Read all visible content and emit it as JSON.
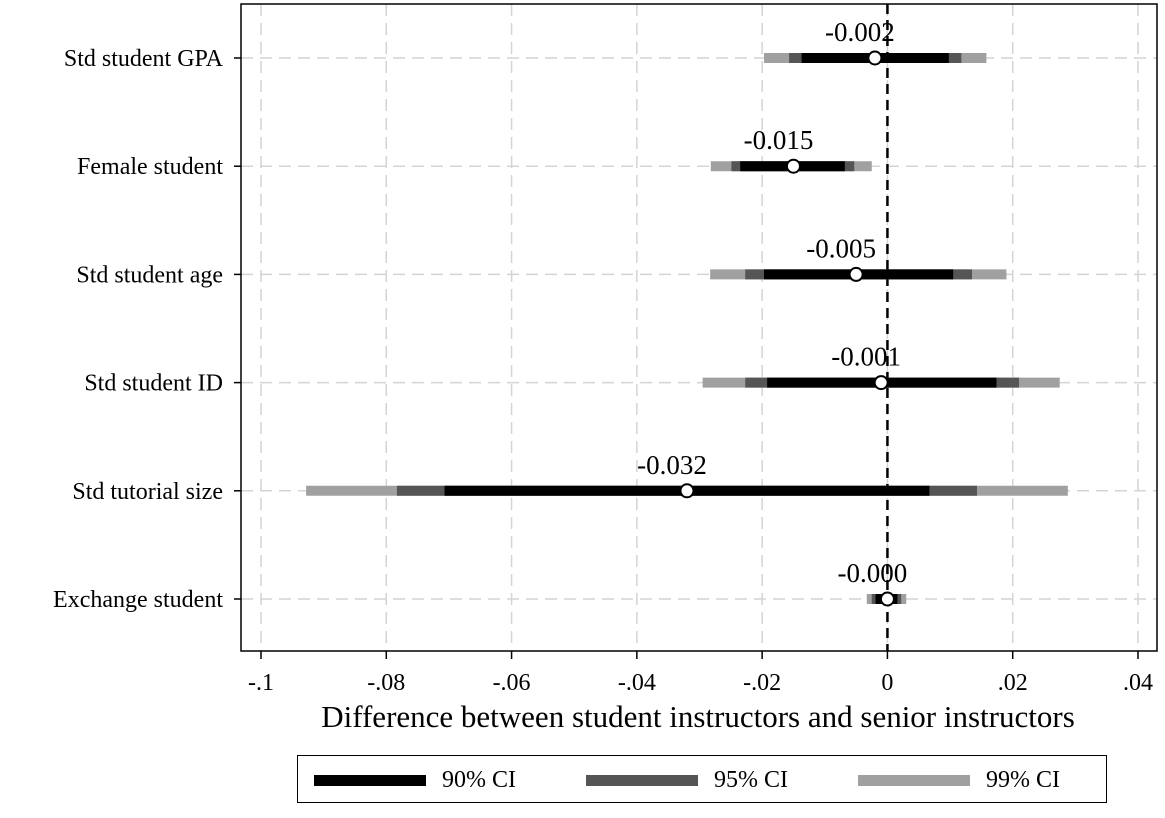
{
  "chart_data": {
    "type": "coefficient-plot",
    "xlabel": "Difference between student instructors and senior instructors",
    "xlim": [
      -0.1,
      0.04
    ],
    "x_tick_values": [
      -0.1,
      -0.08,
      -0.06,
      -0.04,
      -0.02,
      0,
      0.02,
      0.04
    ],
    "x_tick_labels": [
      "-.1",
      "-.08",
      "-.06",
      "-.04",
      "-.02",
      "0",
      ".02",
      ".04"
    ],
    "grid": true,
    "reference_line_x": 0,
    "categories": [
      "Std student GPA",
      "Female student",
      "Std student age",
      "Std student ID",
      "Std tutorial size",
      "Exchange student"
    ],
    "estimates": [
      -0.002,
      -0.015,
      -0.005,
      -0.001,
      -0.032,
      -0.0
    ],
    "estimate_labels": [
      "-0.002",
      "-0.015",
      "-0.005",
      "-0.001",
      "-0.032",
      "-0.000"
    ],
    "series": [
      {
        "name": "99% CI",
        "color": "#a0a0a0",
        "ranges": [
          [
            -0.0197,
            0.0158
          ],
          [
            -0.0282,
            -0.0025
          ],
          [
            -0.0283,
            0.019
          ],
          [
            -0.0295,
            0.0275
          ],
          [
            -0.0928,
            0.0288
          ],
          [
            -0.0033,
            0.003
          ]
        ]
      },
      {
        "name": "95% CI",
        "color": "#555555",
        "ranges": [
          [
            -0.0157,
            0.0118
          ],
          [
            -0.0249,
            -0.0053
          ],
          [
            -0.0227,
            0.0135
          ],
          [
            -0.0227,
            0.021
          ],
          [
            -0.0783,
            0.0143
          ],
          [
            -0.0025,
            0.0022
          ]
        ]
      },
      {
        "name": "90% CI",
        "color": "#000000",
        "ranges": [
          [
            -0.0137,
            0.0098
          ],
          [
            -0.0235,
            -0.0068
          ],
          [
            -0.0197,
            0.0105
          ],
          [
            -0.0192,
            0.0174
          ],
          [
            -0.0707,
            0.0067
          ],
          [
            -0.0019,
            0.0016
          ]
        ]
      }
    ]
  },
  "legend": {
    "items": [
      {
        "label": "90% CI",
        "color": "#000000"
      },
      {
        "label": "95% CI",
        "color": "#555555"
      },
      {
        "label": "99% CI",
        "color": "#a0a0a0"
      }
    ]
  }
}
